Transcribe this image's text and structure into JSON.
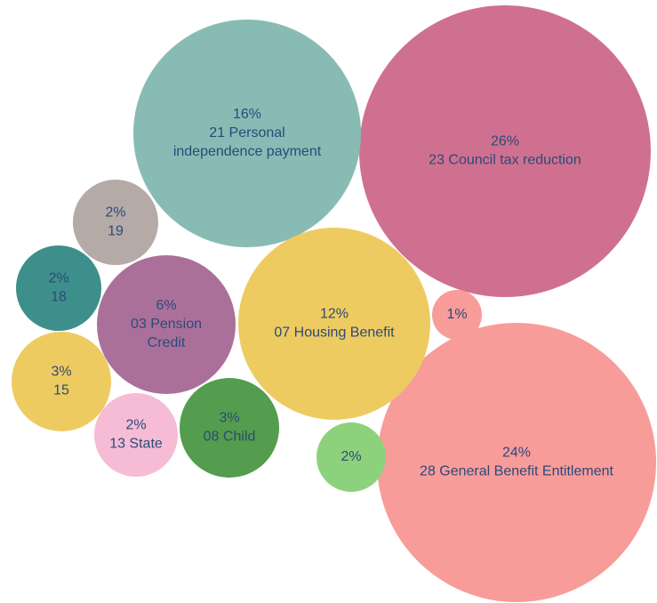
{
  "chart_data": {
    "type": "bubble",
    "bubbles": [
      {
        "percent": "26%",
        "label": "23 Council tax reduction",
        "value": 26,
        "color": "#d07090"
      },
      {
        "percent": "24%",
        "label": "28 General Benefit Entitlement",
        "value": 24,
        "color": "#f89c9a"
      },
      {
        "percent": "16%",
        "label": "21 Personal independence payment",
        "value": 16,
        "color": "#88bbb4"
      },
      {
        "percent": "12%",
        "label": "07 Housing Benefit",
        "value": 12,
        "color": "#eecb60"
      },
      {
        "percent": "6%",
        "label": "03 Pension Credit",
        "value": 6,
        "color": "#ab709a"
      },
      {
        "percent": "3%",
        "label": "08 Child",
        "value": 3,
        "color": "#549c4e"
      },
      {
        "percent": "3%",
        "label": "15",
        "value": 3,
        "color": "#eecb60"
      },
      {
        "percent": "2%",
        "label": "19",
        "value": 2,
        "color": "#b6aaa7"
      },
      {
        "percent": "2%",
        "label": "18",
        "value": 2,
        "color": "#3d8f8b"
      },
      {
        "percent": "2%",
        "label": "13 State",
        "value": 2,
        "color": "#f6bcd5"
      },
      {
        "percent": "2%",
        "label": "",
        "value": 2,
        "color": "#8cd27c"
      },
      {
        "percent": "1%",
        "label": "",
        "value": 1,
        "color": "#f89c9a"
      }
    ]
  }
}
